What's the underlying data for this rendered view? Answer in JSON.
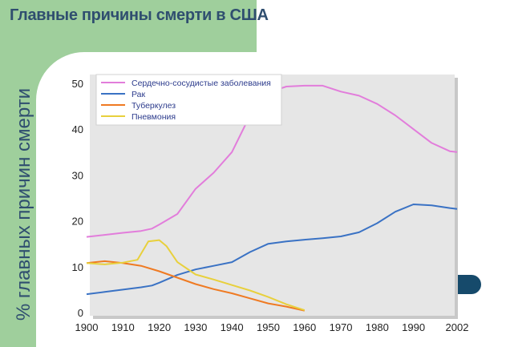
{
  "slide": {
    "title": "Главные причины смерти в США",
    "colors": {
      "panel_green": "#9fcf9c",
      "title_blue": "#2f4e6f",
      "deco_navy": "#164a6b"
    }
  },
  "chart_data": {
    "type": "line",
    "title": "",
    "xlabel": "",
    "ylabel": "% главных причин смерти",
    "xlim": [
      1900,
      2002
    ],
    "ylim": [
      0,
      52
    ],
    "x_ticks": [
      1900,
      1910,
      1920,
      1930,
      1940,
      1950,
      1960,
      1970,
      1980,
      1990,
      2002
    ],
    "y_ticks": [
      0,
      10,
      20,
      30,
      40,
      50
    ],
    "grid": false,
    "legend": "top-left",
    "series": [
      {
        "name": "Сердечно-сосудистые заболевания",
        "color": "#e27ddb",
        "points": [
          [
            1900,
            16.5
          ],
          [
            1910,
            17.4
          ],
          [
            1915,
            17.8
          ],
          [
            1918,
            18.3
          ],
          [
            1920,
            19.2
          ],
          [
            1925,
            21.5
          ],
          [
            1930,
            27
          ],
          [
            1935,
            30.5
          ],
          [
            1940,
            35
          ],
          [
            1945,
            43
          ],
          [
            1950,
            48
          ],
          [
            1955,
            49.3
          ],
          [
            1960,
            49.5
          ],
          [
            1965,
            49.5
          ],
          [
            1970,
            48.2
          ],
          [
            1975,
            47.3
          ],
          [
            1980,
            45.5
          ],
          [
            1985,
            43
          ],
          [
            1990,
            40
          ],
          [
            1995,
            37
          ],
          [
            2000,
            35.2
          ],
          [
            2002,
            35
          ]
        ]
      },
      {
        "name": "Рак",
        "color": "#3a72c4",
        "points": [
          [
            1900,
            4
          ],
          [
            1905,
            4.5
          ],
          [
            1910,
            5
          ],
          [
            1915,
            5.5
          ],
          [
            1918,
            5.9
          ],
          [
            1920,
            6.5
          ],
          [
            1925,
            8.2
          ],
          [
            1930,
            9.4
          ],
          [
            1935,
            10.2
          ],
          [
            1940,
            11
          ],
          [
            1945,
            13.2
          ],
          [
            1950,
            15
          ],
          [
            1955,
            15.5
          ],
          [
            1960,
            15.9
          ],
          [
            1965,
            16.2
          ],
          [
            1970,
            16.6
          ],
          [
            1975,
            17.5
          ],
          [
            1980,
            19.5
          ],
          [
            1985,
            22
          ],
          [
            1990,
            23.6
          ],
          [
            1995,
            23.4
          ],
          [
            2000,
            22.8
          ],
          [
            2002,
            22.6
          ]
        ]
      },
      {
        "name": "Туберкулез",
        "color": "#ef7a22",
        "points": [
          [
            1900,
            10.8
          ],
          [
            1905,
            11.2
          ],
          [
            1910,
            10.8
          ],
          [
            1915,
            10.2
          ],
          [
            1920,
            9
          ],
          [
            1925,
            7.6
          ],
          [
            1930,
            6.2
          ],
          [
            1935,
            5.1
          ],
          [
            1940,
            4.2
          ],
          [
            1945,
            3.1
          ],
          [
            1950,
            2
          ],
          [
            1955,
            1.3
          ],
          [
            1960,
            0.4
          ]
        ]
      },
      {
        "name": "Пневмония",
        "color": "#e8d03c",
        "points": [
          [
            1900,
            10.8
          ],
          [
            1905,
            10.5
          ],
          [
            1910,
            10.9
          ],
          [
            1914,
            11.5
          ],
          [
            1917,
            15.5
          ],
          [
            1920,
            15.8
          ],
          [
            1922,
            14.5
          ],
          [
            1925,
            11
          ],
          [
            1930,
            8.3
          ],
          [
            1935,
            7.2
          ],
          [
            1940,
            6
          ],
          [
            1945,
            4.8
          ],
          [
            1950,
            3.4
          ],
          [
            1955,
            1.8
          ],
          [
            1960,
            0.5
          ]
        ]
      }
    ]
  }
}
